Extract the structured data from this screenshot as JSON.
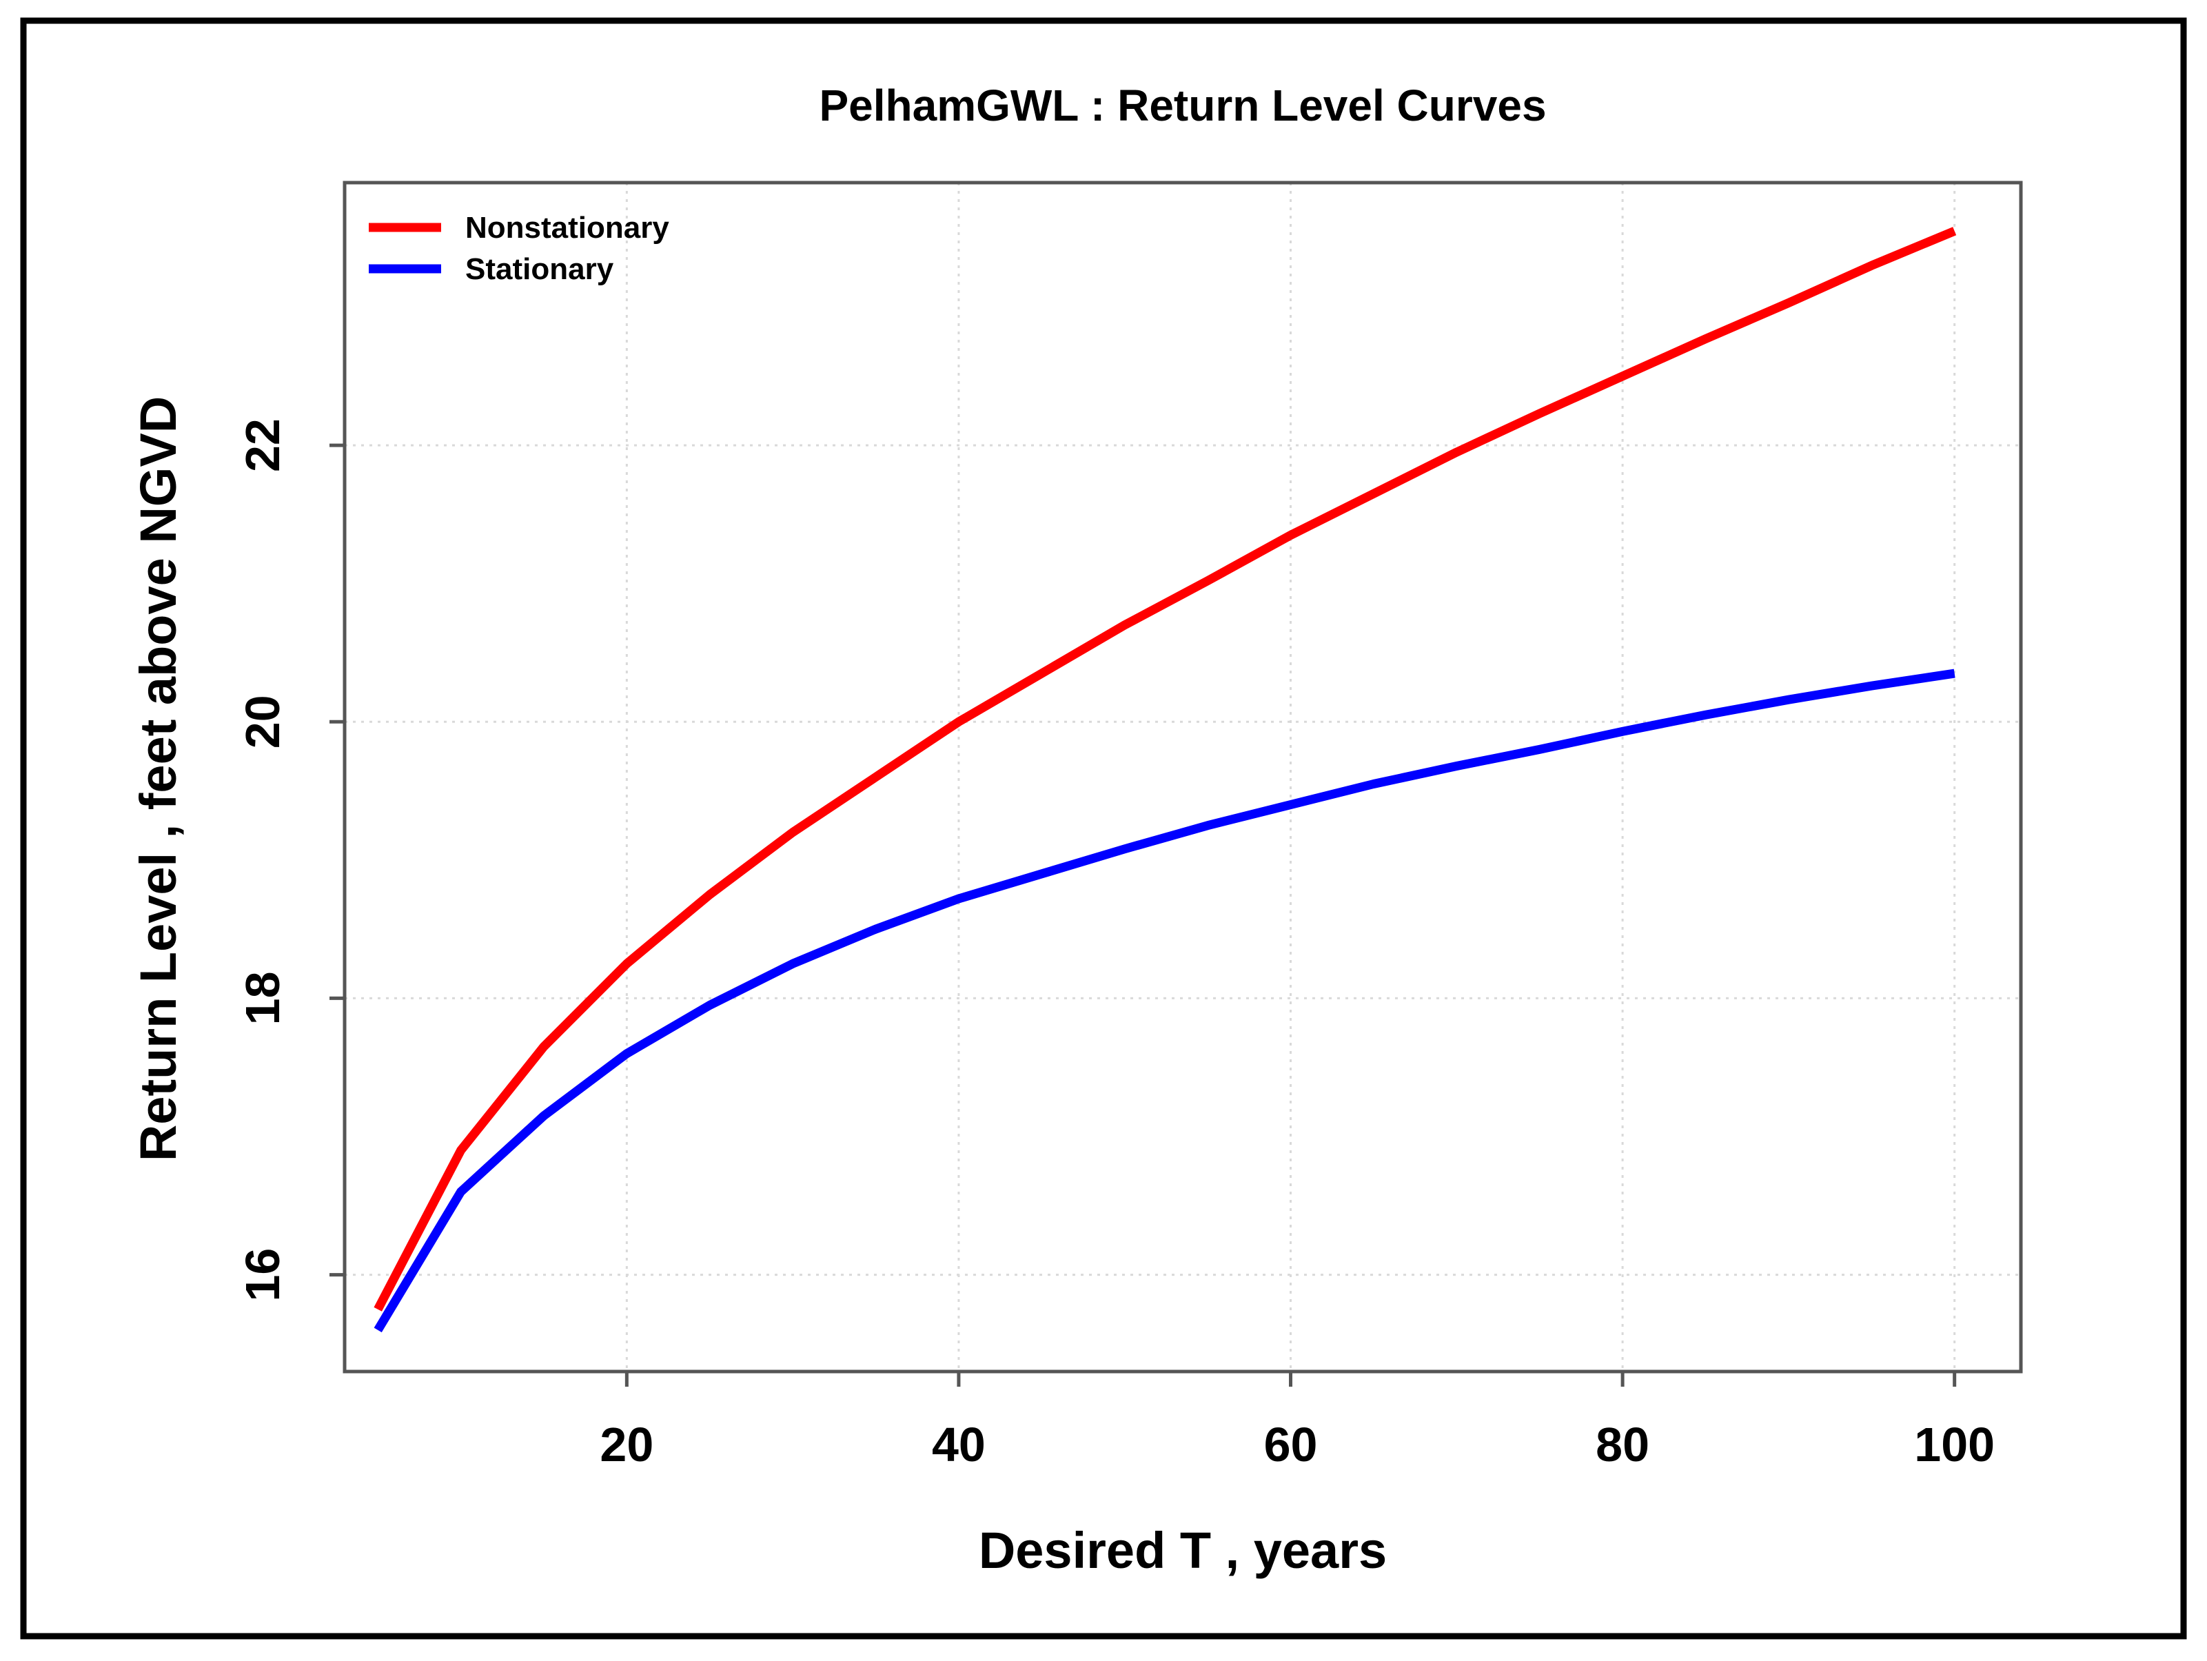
{
  "chart_data": {
    "type": "line",
    "title": "PelhamGWL : Return Level Curves",
    "xlabel": "Desired T , years",
    "ylabel": "Return Level , feet above NGVD",
    "xlim": [
      3,
      104
    ],
    "ylim": [
      15.3,
      23.9
    ],
    "xticks": [
      20,
      40,
      60,
      80,
      100
    ],
    "yticks": [
      16,
      18,
      20,
      22
    ],
    "grid": true,
    "legend_position": "top-left",
    "x": [
      5,
      10,
      15,
      20,
      25,
      30,
      35,
      40,
      45,
      50,
      55,
      60,
      65,
      70,
      75,
      80,
      85,
      90,
      95,
      100
    ],
    "series": [
      {
        "name": "Nonstationary",
        "color": "#ff0000",
        "values": [
          15.75,
          16.9,
          17.65,
          18.25,
          18.75,
          19.2,
          19.6,
          20.0,
          20.35,
          20.7,
          21.02,
          21.35,
          21.65,
          21.95,
          22.23,
          22.5,
          22.77,
          23.03,
          23.3,
          23.55
        ]
      },
      {
        "name": "Stationary",
        "color": "#0000ff",
        "values": [
          15.6,
          16.6,
          17.15,
          17.6,
          17.95,
          18.25,
          18.5,
          18.72,
          18.9,
          19.08,
          19.25,
          19.4,
          19.55,
          19.68,
          19.8,
          19.93,
          20.05,
          20.16,
          20.26,
          20.35
        ]
      }
    ]
  }
}
